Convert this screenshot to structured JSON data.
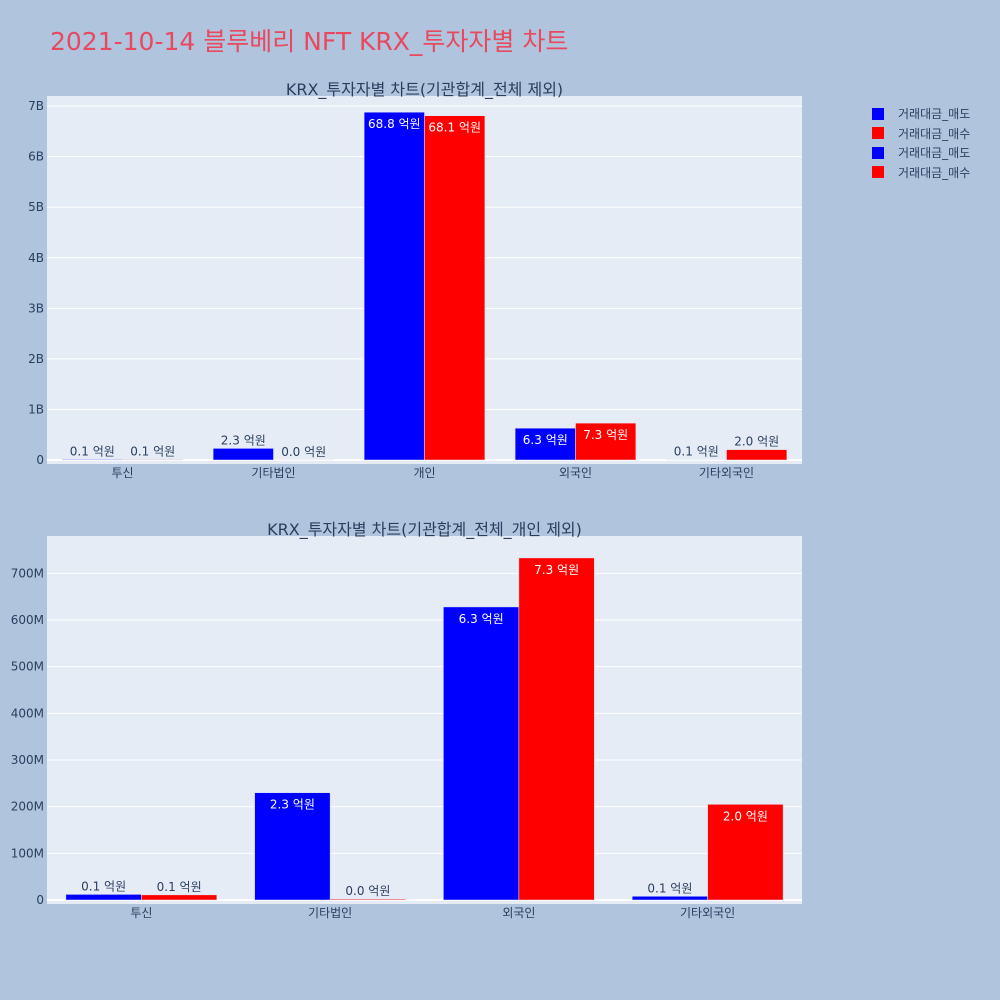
{
  "page_title": "2021-10-14 블루베리 NFT KRX_투자자별 차트",
  "colors": {
    "sell": "#0000ff",
    "buy": "#ff0000",
    "plot_bg": "#e5ecf6",
    "paper_bg": "#b0c4de"
  },
  "legend": [
    {
      "name": "거래대금_매도",
      "color": "#0000ff"
    },
    {
      "name": "거래대금_매수",
      "color": "#ff0000"
    },
    {
      "name": "거래대금_매도",
      "color": "#0000ff"
    },
    {
      "name": "거래대금_매수",
      "color": "#ff0000"
    }
  ],
  "chart_data": [
    {
      "type": "bar",
      "title": "KRX_투자자별 차트(기관합계_전체 제외)",
      "categories": [
        "투신",
        "기타법인",
        "개인",
        "외국인",
        "기타외국인"
      ],
      "series": [
        {
          "name": "거래대금_매도",
          "color": "#0000ff",
          "values": [
            12000000,
            230000000,
            6880000000,
            630000000,
            8000000
          ],
          "labels": [
            "0.1 억원",
            "2.3 억원",
            "68.8 억원",
            "6.3 억원",
            "0.1 억원"
          ]
        },
        {
          "name": "거래대금_매수",
          "color": "#ff0000",
          "values": [
            11000000,
            2000000,
            6810000000,
            730000000,
            205000000
          ],
          "labels": [
            "0.1 억원",
            "0.0 억원",
            "68.1 억원",
            "7.3 억원",
            "2.0 억원"
          ]
        }
      ],
      "ylim": [
        0,
        7200000000
      ],
      "yticks": [
        0,
        1000000000,
        2000000000,
        3000000000,
        4000000000,
        5000000000,
        6000000000,
        7000000000
      ],
      "yticklabels": [
        "0",
        "1B",
        "2B",
        "3B",
        "4B",
        "5B",
        "6B",
        "7B"
      ],
      "grid": true
    },
    {
      "type": "bar",
      "title": "KRX_투자자별 차트(기관합계_전체_개인 제외)",
      "categories": [
        "투신",
        "기타법인",
        "외국인",
        "기타외국인"
      ],
      "series": [
        {
          "name": "거래대금_매도",
          "color": "#0000ff",
          "values": [
            12000000,
            230000000,
            628000000,
            8000000
          ],
          "labels": [
            "0.1 억원",
            "2.3 억원",
            "6.3 억원",
            "0.1 억원"
          ]
        },
        {
          "name": "거래대금_매수",
          "color": "#ff0000",
          "values": [
            11000000,
            2000000,
            733000000,
            205000000
          ],
          "labels": [
            "0.1 억원",
            "0.0 억원",
            "7.3 억원",
            "2.0 억원"
          ]
        }
      ],
      "ylim": [
        0,
        780000000
      ],
      "yticks": [
        0,
        100000000,
        200000000,
        300000000,
        400000000,
        500000000,
        600000000,
        700000000
      ],
      "yticklabels": [
        "0",
        "100M",
        "200M",
        "300M",
        "400M",
        "500M",
        "600M",
        "700M"
      ],
      "grid": true
    }
  ]
}
